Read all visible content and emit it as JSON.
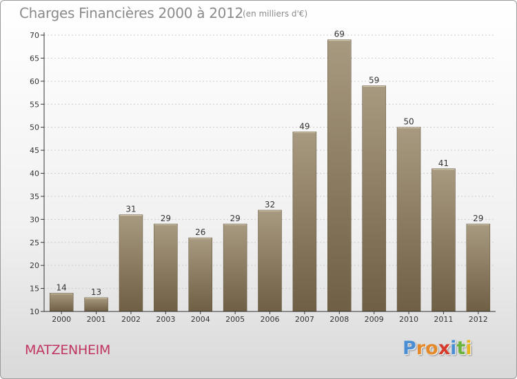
{
  "header": {
    "title": "Charges Financières 2000 à 2012",
    "subtitle": "(en milliers d'€)"
  },
  "footer": {
    "commune": "MATZENHEIM",
    "logo_letters": [
      "P",
      "r",
      "o",
      "x",
      "i",
      "t",
      "i"
    ],
    "logo_colors": [
      "#4a8fd4",
      "#e58a2a",
      "#e58a2a",
      "#d63a2a",
      "#4a8fd4",
      "#6cb33e",
      "#e8b520"
    ]
  },
  "colors": {
    "bar_top": "#a89a80",
    "bar_bottom": "#6f5f44",
    "axis": "#333333",
    "grid": "#cccccc",
    "commune": "#c0355f"
  },
  "chart_data": {
    "type": "bar",
    "categories": [
      "2000",
      "2001",
      "2002",
      "2003",
      "2004",
      "2005",
      "2006",
      "2007",
      "2008",
      "2009",
      "2010",
      "2011",
      "2012"
    ],
    "values": [
      14,
      13,
      31,
      29,
      26,
      29,
      32,
      49,
      69,
      59,
      50,
      41,
      29
    ],
    "ylim": [
      10,
      70
    ],
    "yticks": [
      10,
      15,
      20,
      25,
      30,
      35,
      40,
      45,
      50,
      55,
      60,
      65,
      70
    ],
    "grid": true,
    "data_labels": true
  }
}
